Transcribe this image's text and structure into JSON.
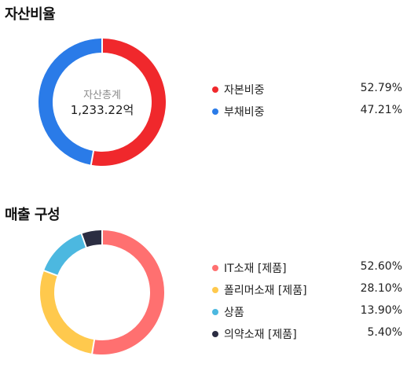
{
  "sections": [
    {
      "title": "자산비율",
      "center": {
        "caption": "자산총계",
        "value": "1,233.22억"
      },
      "legend": [
        {
          "label": "자본비중",
          "value": "52.79%",
          "color": "#f0282c"
        },
        {
          "label": "부채비중",
          "value": "47.21%",
          "color": "#2a7be8"
        }
      ]
    },
    {
      "title": "매출 구성",
      "legend": [
        {
          "label": "IT소재 [제품]",
          "value": "52.60%",
          "color": "#ff7070"
        },
        {
          "label": "폴리머소재 [제품]",
          "value": "28.10%",
          "color": "#ffc94d"
        },
        {
          "label": "상품",
          "value": "13.90%",
          "color": "#4cb8e0"
        },
        {
          "label": "의약소재 [제품]",
          "value": "5.40%",
          "color": "#2b2d42"
        }
      ]
    }
  ],
  "chart_data": [
    {
      "type": "pie",
      "title": "자산비율",
      "categories": [
        "자본비중",
        "부채비중"
      ],
      "values": [
        52.79,
        47.21
      ],
      "colors": [
        "#f0282c",
        "#2a7be8"
      ],
      "center_text": [
        "자산총계",
        "1,233.22억"
      ]
    },
    {
      "type": "pie",
      "title": "매출 구성",
      "categories": [
        "IT소재 [제품]",
        "폴리머소재 [제품]",
        "상품",
        "의약소재 [제품]"
      ],
      "values": [
        52.6,
        28.1,
        13.9,
        5.4
      ],
      "colors": [
        "#ff7070",
        "#ffc94d",
        "#4cb8e0",
        "#2b2d42"
      ]
    }
  ]
}
